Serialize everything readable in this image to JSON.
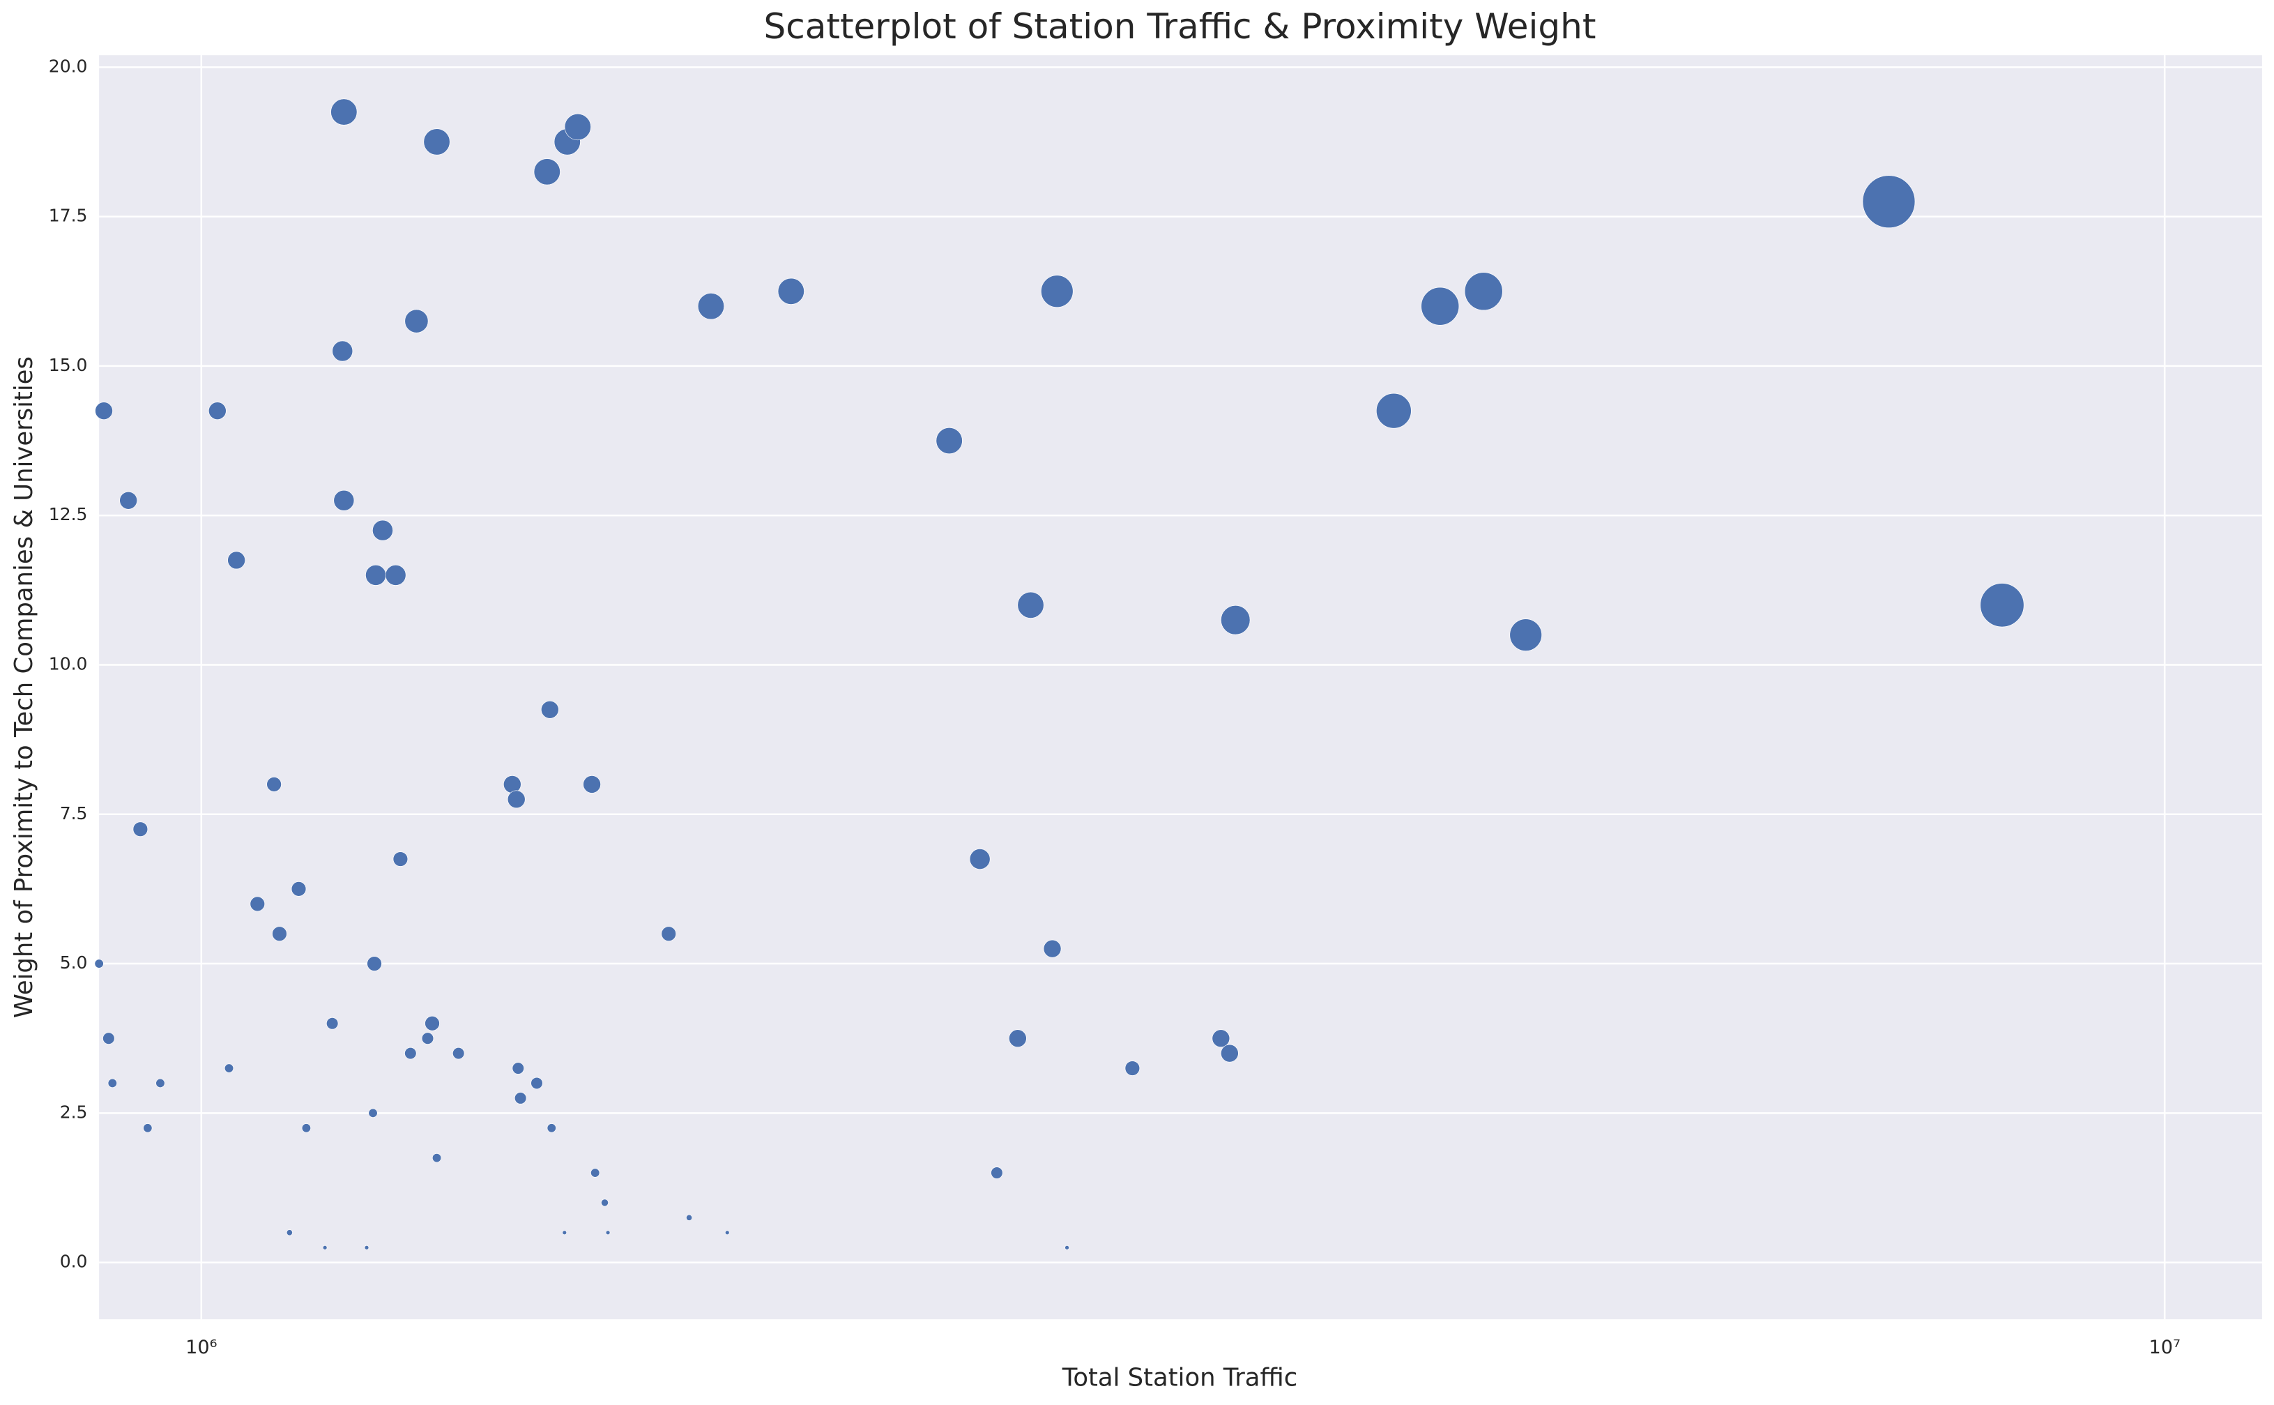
{
  "chart_data": {
    "type": "scatter",
    "title": "Scatterplot of Station Traffic & Proximity Weight",
    "x_label": "Total Station Traffic",
    "y_label": "Weight of Proximity to Tech Companies & Universities",
    "x_scale": "log",
    "grid": true,
    "color": "#4c72b0",
    "xlim": [
      887000,
      11210000
    ],
    "ylim": [
      -0.95,
      20.2
    ],
    "xticks": [
      {
        "value": 1000000,
        "label": "10⁶"
      },
      {
        "value": 10000000,
        "label": "10⁷"
      }
    ],
    "yticks": [
      {
        "value": 0,
        "label": "0.0"
      },
      2.5,
      {
        "value": 5,
        "label": "5.0"
      },
      7.5,
      {
        "value": 10,
        "label": "10.0"
      },
      12.5,
      {
        "value": 15,
        "label": "15.0"
      },
      17.5,
      {
        "value": 20,
        "label": "20.0"
      }
    ],
    "x": [
      892000,
      918000,
      931000,
      887000,
      897000,
      901000,
      939000,
      953000,
      1019000,
      1042000,
      1033000,
      1089000,
      1068000,
      1096000,
      1121000,
      1109000,
      1131000,
      1166000,
      1156000,
      1182000,
      1180000,
      1182000,
      1237000,
      1227000,
      1256000,
      1225000,
      1223000,
      1214000,
      1263000,
      1287000,
      1318000,
      1278000,
      1304000,
      1311000,
      1318000,
      1352000,
      1440000,
      1447000,
      1450000,
      1454000,
      1482000,
      1500000,
      1505000,
      1508000,
      1536000,
      1555000,
      1581000,
      1587000,
      1605000,
      1531000,
      1611000,
      1730000,
      1772000,
      1818000,
      1853000,
      1997000,
      2404000,
      2492000,
      2542000,
      2605000,
      2645000,
      2713000,
      2728000,
      2760000,
      2980000,
      3306000,
      3340000,
      3363000,
      4049000,
      4275000,
      4499000,
      4727000,
      7236000,
      8264000
    ],
    "values": [
      14.25,
      12.75,
      7.25,
      5.0,
      3.75,
      3.0,
      2.25,
      3.0,
      14.25,
      11.75,
      3.25,
      8.0,
      6.0,
      5.5,
      6.25,
      0.5,
      2.25,
      4.0,
      0.25,
      19.25,
      15.25,
      12.75,
      12.25,
      11.5,
      11.5,
      5.0,
      2.5,
      0.25,
      6.75,
      15.75,
      18.75,
      3.5,
      3.75,
      4.0,
      1.75,
      3.5,
      8.0,
      7.75,
      3.25,
      2.75,
      3.0,
      18.25,
      9.25,
      2.25,
      18.75,
      19.0,
      8.0,
      1.5,
      1.0,
      0.5,
      0.5,
      5.5,
      0.75,
      16.0,
      0.5,
      16.25,
      13.75,
      6.75,
      1.5,
      3.75,
      11.0,
      5.25,
      16.25,
      0.25,
      3.25,
      3.75,
      3.5,
      10.75,
      14.25,
      16.0,
      16.25,
      10.5,
      17.75,
      11.0
    ],
    "sizes": [
      36,
      36,
      25,
      9,
      16,
      9,
      9,
      9,
      36,
      36,
      9,
      25,
      25,
      25,
      25,
      4,
      9,
      16,
      2,
      81,
      49,
      49,
      49,
      49,
      49,
      25,
      9,
      2,
      25,
      64,
      81,
      16,
      16,
      25,
      9,
      16,
      36,
      36,
      16,
      16,
      16,
      81,
      36,
      9,
      81,
      81,
      36,
      9,
      6,
      2,
      2,
      25,
      4,
      81,
      2,
      81,
      81,
      49,
      16,
      36,
      81,
      36,
      121,
      2,
      25,
      36,
      36,
      100,
      144,
      169,
      169,
      121,
      324,
      225
    ]
  }
}
